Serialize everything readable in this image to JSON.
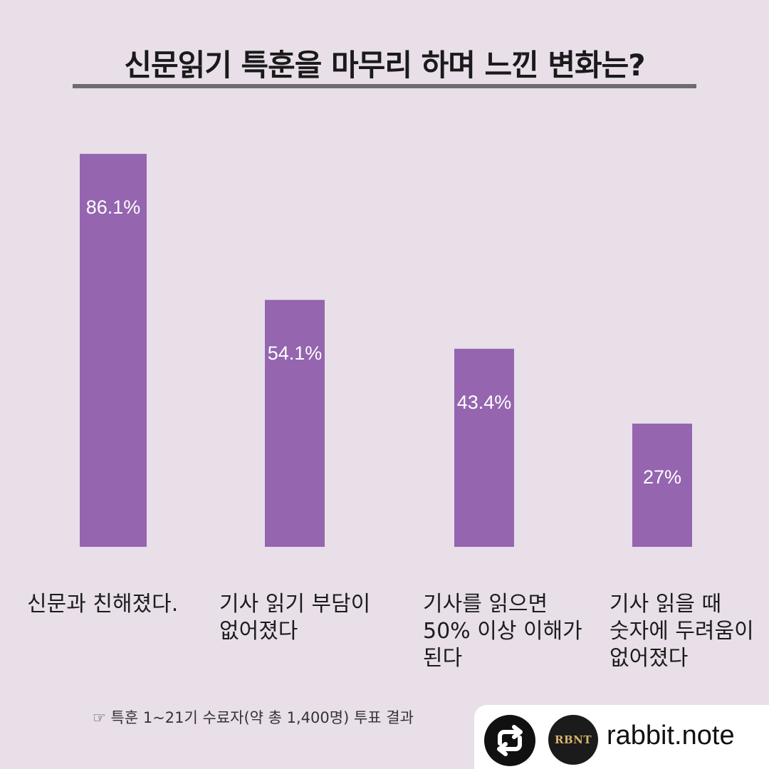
{
  "title": "신문읽기 특훈을 마무리 하며 느낀 변화는?",
  "chart_data": {
    "type": "bar",
    "title": "신문읽기 특훈을 마무리 하며 느낀 변화는?",
    "categories": [
      "신문과 친해졌다.",
      "기사 읽기 부담이\n없어졌다",
      "기사를 읽으면\n50% 이상 이해가\n된다",
      "기사 읽을 때\n숫자에 두려움이\n없어졌다"
    ],
    "values": [
      86.1,
      54.1,
      43.4,
      27
    ],
    "value_labels": [
      "86.1%",
      "54.1%",
      "43.4%",
      "27%"
    ],
    "ylim": [
      0,
      100
    ],
    "xlabel": "",
    "ylabel": "",
    "grid": false,
    "bar_color": "#9565b0"
  },
  "footnote": "☞ 특훈 1~21기 수료자(약 총 1,400명)  투표 결과",
  "overlay": {
    "avatar_text": "RBNT",
    "handle": "rabbit.note",
    "icon": "repost-icon"
  }
}
